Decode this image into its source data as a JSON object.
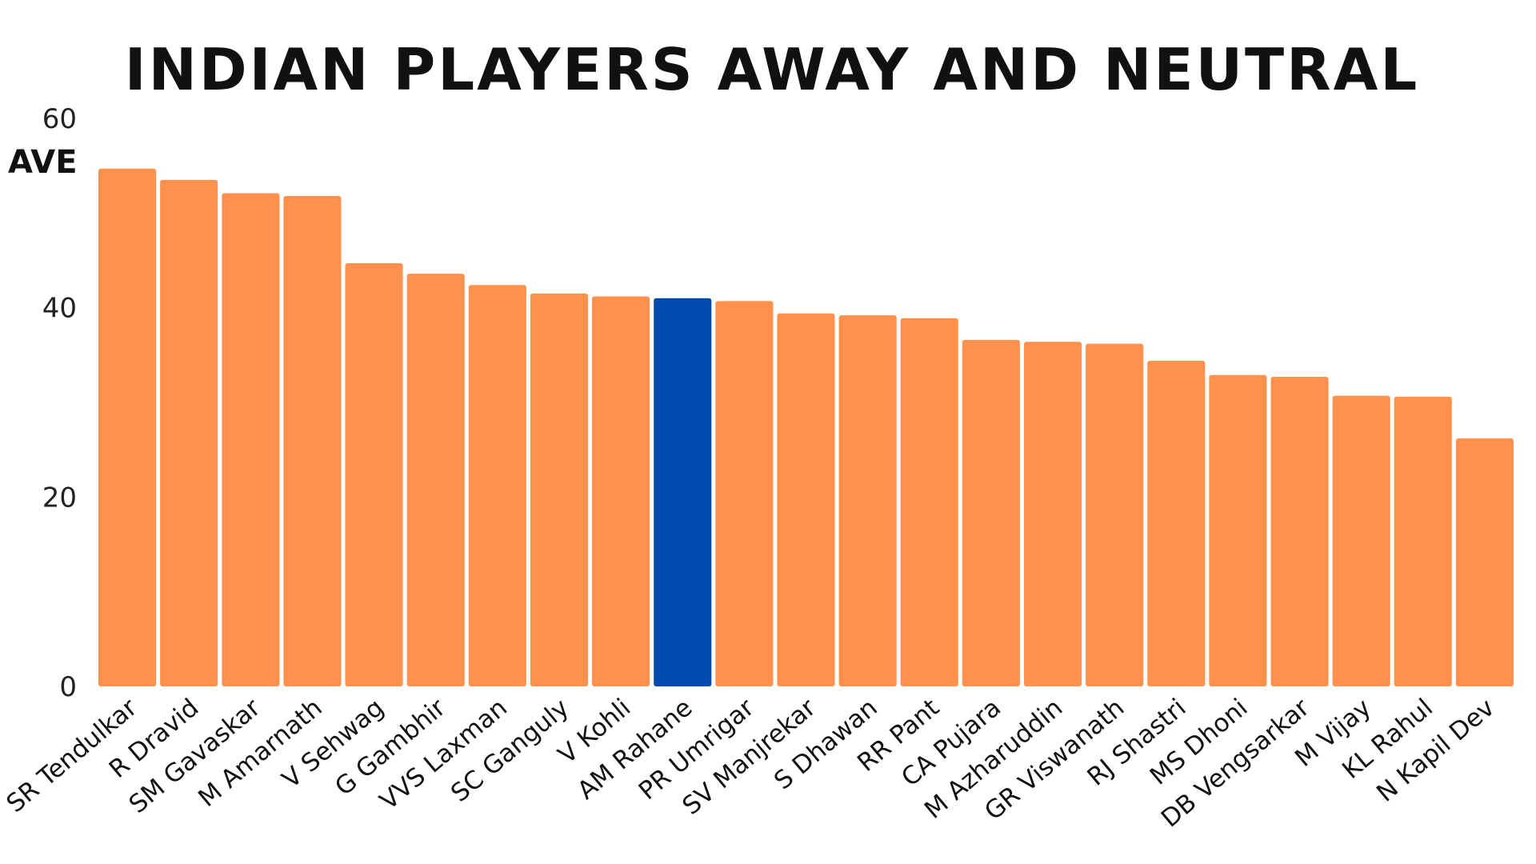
{
  "chart_data": {
    "type": "bar",
    "title": "INDIAN PLAYERS AWAY AND NEUTRAL",
    "xlabel": "",
    "ylabel": "AVE",
    "ylim": [
      0,
      60
    ],
    "yticks": [
      0,
      20,
      40,
      60
    ],
    "grid": false,
    "categories": [
      "SR Tendulkar",
      "R Dravid",
      "SM Gavaskar",
      "M Amarnath",
      "V Sehwag",
      "G Gambhir",
      "VVS Laxman",
      "SC Ganguly",
      "V Kohli",
      "AM Rahane",
      "PR Umrigar",
      "SV Manjrekar",
      "S Dhawan",
      "RR Pant",
      "CA Pujara",
      "M Azharuddin",
      "GR Viswanath",
      "RJ Shastri",
      "MS Dhoni",
      "DB Vengsarkar",
      "M Vijay",
      "KL Rahul",
      "N Kapil Dev"
    ],
    "values": [
      54.7,
      53.5,
      52.1,
      51.8,
      44.7,
      43.6,
      42.4,
      41.5,
      41.2,
      41.0,
      40.7,
      39.4,
      39.2,
      38.9,
      36.6,
      36.4,
      36.2,
      34.4,
      32.9,
      32.7,
      30.7,
      30.6,
      26.2
    ],
    "colors": {
      "default": "#FF914D",
      "highlight": "#004AAD"
    },
    "highlight": "AM Rahane"
  }
}
